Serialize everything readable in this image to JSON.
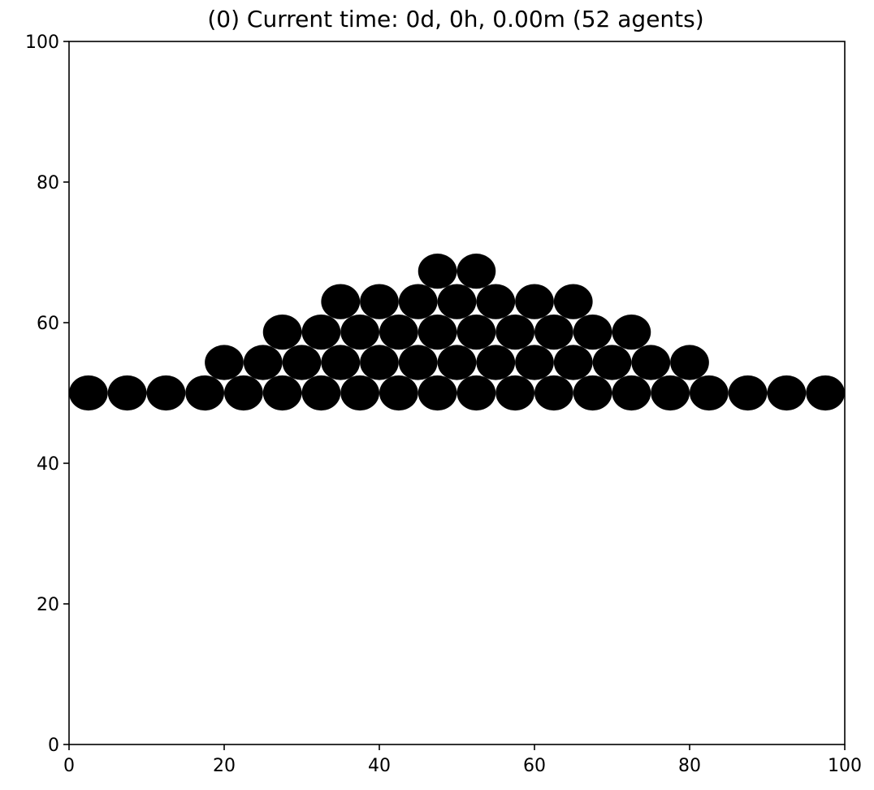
{
  "chart_data": {
    "type": "scatter",
    "title": "(0) Current time: 0d, 0h, 0.00m (52 agents)",
    "xlabel": "",
    "ylabel": "",
    "xlim": [
      0,
      100
    ],
    "ylim": [
      0,
      100
    ],
    "x_ticks": [
      0,
      20,
      40,
      60,
      80,
      100
    ],
    "y_ticks": [
      0,
      20,
      40,
      60,
      80,
      100
    ],
    "x_tick_labels": [
      "0",
      "20",
      "40",
      "60",
      "80",
      "100"
    ],
    "y_tick_labels": [
      "0",
      "20",
      "40",
      "60",
      "80",
      "100"
    ],
    "grid": false,
    "marker_color": "#000000",
    "marker_radius_data_units": 2.5,
    "points": [
      [
        2.5,
        50
      ],
      [
        7.5,
        50
      ],
      [
        12.5,
        50
      ],
      [
        17.5,
        50
      ],
      [
        22.5,
        50
      ],
      [
        27.5,
        50
      ],
      [
        32.5,
        50
      ],
      [
        37.5,
        50
      ],
      [
        42.5,
        50
      ],
      [
        47.5,
        50
      ],
      [
        52.5,
        50
      ],
      [
        57.5,
        50
      ],
      [
        62.5,
        50
      ],
      [
        67.5,
        50
      ],
      [
        72.5,
        50
      ],
      [
        77.5,
        50
      ],
      [
        82.5,
        50
      ],
      [
        87.5,
        50
      ],
      [
        92.5,
        50
      ],
      [
        97.5,
        50
      ],
      [
        20,
        54.33
      ],
      [
        25,
        54.33
      ],
      [
        30,
        54.33
      ],
      [
        35,
        54.33
      ],
      [
        40,
        54.33
      ],
      [
        45,
        54.33
      ],
      [
        50,
        54.33
      ],
      [
        55,
        54.33
      ],
      [
        60,
        54.33
      ],
      [
        65,
        54.33
      ],
      [
        70,
        54.33
      ],
      [
        75,
        54.33
      ],
      [
        80,
        54.33
      ],
      [
        27.5,
        58.66
      ],
      [
        32.5,
        58.66
      ],
      [
        37.5,
        58.66
      ],
      [
        42.5,
        58.66
      ],
      [
        47.5,
        58.66
      ],
      [
        52.5,
        58.66
      ],
      [
        57.5,
        58.66
      ],
      [
        62.5,
        58.66
      ],
      [
        67.5,
        58.66
      ],
      [
        72.5,
        58.66
      ],
      [
        35,
        62.99
      ],
      [
        40,
        62.99
      ],
      [
        45,
        62.99
      ],
      [
        50,
        62.99
      ],
      [
        55,
        62.99
      ],
      [
        60,
        62.99
      ],
      [
        65,
        62.99
      ],
      [
        47.5,
        67.32
      ],
      [
        52.5,
        67.32
      ]
    ]
  }
}
